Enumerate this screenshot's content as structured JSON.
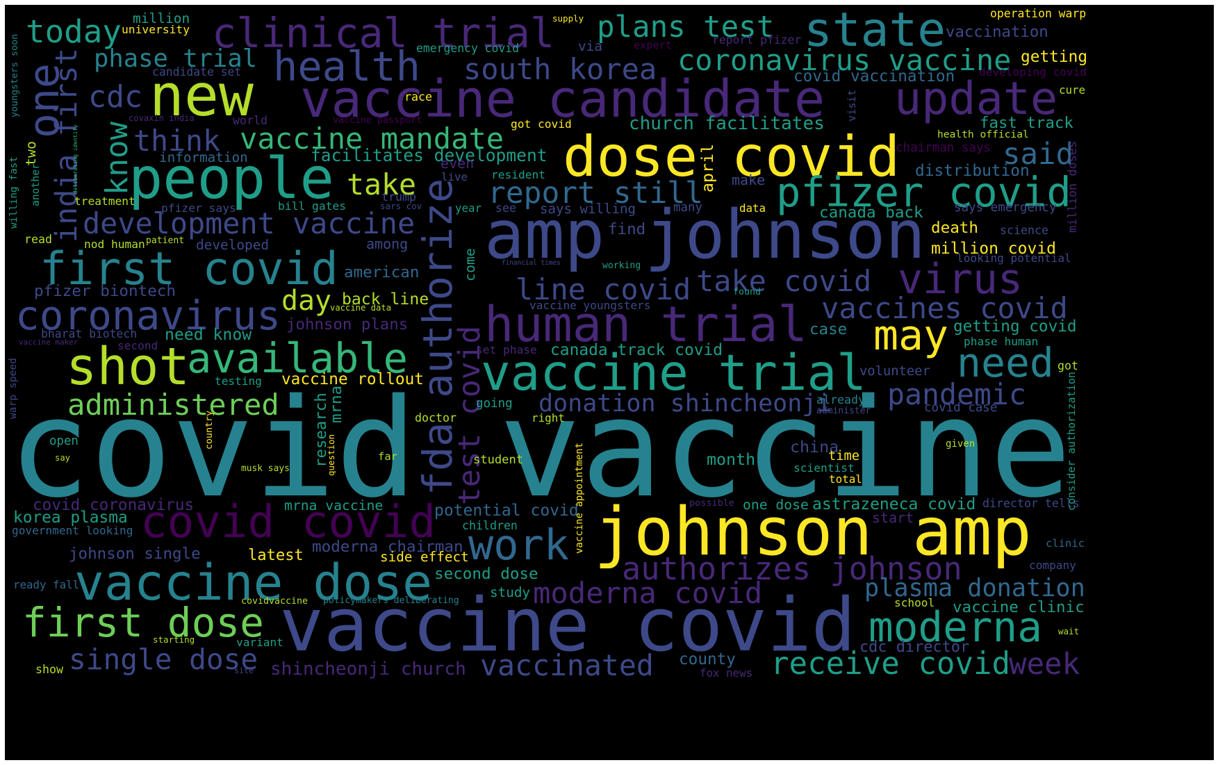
{
  "palette": {
    "c1": "#482878",
    "c2": "#3e4989",
    "c3": "#31688e",
    "c4": "#26828e",
    "c5": "#1f9e89",
    "c6": "#35b779",
    "c7": "#6ece58",
    "c8": "#b5de2b",
    "c9": "#fde725",
    "c0": "#440154"
  },
  "words": [
    {
      "id": "covid-vaccine",
      "text": "covid vaccine"
    },
    {
      "id": "vaccine-covid",
      "text": "vaccine covid"
    },
    {
      "id": "vaccine-candidate",
      "text": "vaccine candidate"
    },
    {
      "id": "amp-johnson",
      "text": "amp johnson"
    },
    {
      "id": "johnson-amp",
      "text": "johnson amp"
    },
    {
      "id": "dose-covid",
      "text": "dose covid"
    },
    {
      "id": "vaccine-trial",
      "text": "vaccine trial"
    },
    {
      "id": "human-trial",
      "text": "human trial"
    },
    {
      "id": "vaccine-dose",
      "text": "vaccine dose"
    },
    {
      "id": "people",
      "text": "people"
    },
    {
      "id": "clinical-trial",
      "text": "clinical trial"
    },
    {
      "id": "update",
      "text": "update"
    },
    {
      "id": "state",
      "text": "state"
    },
    {
      "id": "new",
      "text": "new"
    },
    {
      "id": "health",
      "text": "health"
    },
    {
      "id": "first-covid",
      "text": "first covid"
    },
    {
      "id": "shot",
      "text": "shot"
    },
    {
      "id": "available",
      "text": "available"
    },
    {
      "id": "coronavirus",
      "text": "coronavirus"
    },
    {
      "id": "pfizer-covid",
      "text": "pfizer covid"
    },
    {
      "id": "covid-covid",
      "text": "covid covid"
    },
    {
      "id": "first-dose",
      "text": "first dose"
    },
    {
      "id": "fda-authorize",
      "text": "fda authorize"
    },
    {
      "id": "coronavirus-vaccine",
      "text": "coronavirus vaccine"
    },
    {
      "id": "moderna",
      "text": "moderna"
    },
    {
      "id": "may",
      "text": "may"
    },
    {
      "id": "work",
      "text": "work"
    },
    {
      "id": "today",
      "text": "today"
    },
    {
      "id": "one",
      "text": "one"
    },
    {
      "id": "authorizes-johnson",
      "text": "authorizes johnson"
    },
    {
      "id": "virus",
      "text": "virus"
    },
    {
      "id": "need",
      "text": "need"
    },
    {
      "id": "plans-test",
      "text": "plans test"
    },
    {
      "id": "south-korea",
      "text": "south korea"
    },
    {
      "id": "vaccine-mandate",
      "text": "vaccine mandate"
    },
    {
      "id": "india-first",
      "text": "india first"
    },
    {
      "id": "development-vaccine",
      "text": "development vaccine"
    },
    {
      "id": "report-still",
      "text": "report still"
    },
    {
      "id": "think",
      "text": "think"
    },
    {
      "id": "know",
      "text": "know"
    },
    {
      "id": "take",
      "text": "take"
    },
    {
      "id": "phase-trial",
      "text": "phase trial"
    },
    {
      "id": "cdc",
      "text": "cdc"
    },
    {
      "id": "line-covid",
      "text": "line covid"
    },
    {
      "id": "take-covid",
      "text": "take covid"
    },
    {
      "id": "vaccines-covid",
      "text": "vaccines covid"
    },
    {
      "id": "test-covid",
      "text": "test covid"
    },
    {
      "id": "pandemic",
      "text": "pandemic"
    },
    {
      "id": "administered",
      "text": "administered"
    },
    {
      "id": "day",
      "text": "day"
    },
    {
      "id": "said",
      "text": "said"
    },
    {
      "id": "moderna-covid",
      "text": "moderna covid"
    },
    {
      "id": "plasma-donation",
      "text": "plasma donation"
    },
    {
      "id": "receive-covid",
      "text": "receive covid"
    },
    {
      "id": "vaccinated",
      "text": "vaccinated"
    },
    {
      "id": "single-dose",
      "text": "single dose"
    },
    {
      "id": "week",
      "text": "week"
    },
    {
      "id": "donation-shincheonji",
      "text": "donation shincheonji"
    },
    {
      "id": "church-facilitates",
      "text": "church facilitates"
    },
    {
      "id": "shincheonji-church",
      "text": "shincheonji church"
    },
    {
      "id": "fast-track",
      "text": "fast track"
    },
    {
      "id": "getting",
      "text": "getting"
    },
    {
      "id": "vaccination",
      "text": "vaccination"
    },
    {
      "id": "covid-vaccination",
      "text": "covid vaccination"
    },
    {
      "id": "distribution",
      "text": "distribution"
    },
    {
      "id": "facilitates-development",
      "text": "facilitates development"
    },
    {
      "id": "death",
      "text": "death"
    },
    {
      "id": "million-covid",
      "text": "million covid"
    },
    {
      "id": "getting-covid",
      "text": "getting covid"
    },
    {
      "id": "potential-covid",
      "text": "potential covid"
    },
    {
      "id": "astrazeneca-covid",
      "text": "astrazeneca covid"
    },
    {
      "id": "second-dose",
      "text": "second dose"
    },
    {
      "id": "moderna-chairman",
      "text": "moderna chairman"
    },
    {
      "id": "vaccine-clinic",
      "text": "vaccine clinic"
    },
    {
      "id": "canada-back",
      "text": "canada back"
    },
    {
      "id": "canada-track-covid",
      "text": "canada track covid"
    },
    {
      "id": "back-line",
      "text": "back line"
    },
    {
      "id": "covid-coronavirus",
      "text": "covid coronavirus"
    },
    {
      "id": "korea-plasma",
      "text": "korea plasma"
    },
    {
      "id": "johnson-single",
      "text": "johnson single"
    },
    {
      "id": "johnson-plans",
      "text": "johnson plans"
    },
    {
      "id": "pfizer-biontech",
      "text": "pfizer biontech"
    },
    {
      "id": "vaccine-rollout",
      "text": "vaccine rollout"
    },
    {
      "id": "mrna-vaccine",
      "text": "mrna vaccine"
    },
    {
      "id": "latest",
      "text": "latest"
    },
    {
      "id": "side-effect",
      "text": "side effect"
    },
    {
      "id": "month",
      "text": "month"
    },
    {
      "id": "china",
      "text": "china"
    },
    {
      "id": "county",
      "text": "county"
    },
    {
      "id": "fox-news",
      "text": "fox news"
    },
    {
      "id": "cdc-director",
      "text": "cdc director"
    },
    {
      "id": "director-tells",
      "text": "director tells"
    },
    {
      "id": "one-dose",
      "text": "one dose"
    },
    {
      "id": "need-know",
      "text": "need know"
    },
    {
      "id": "american",
      "text": "american"
    },
    {
      "id": "among",
      "text": "among"
    },
    {
      "id": "developed",
      "text": "developed"
    },
    {
      "id": "bharat-biotech",
      "text": "bharat biotech"
    },
    {
      "id": "information",
      "text": "information"
    },
    {
      "id": "treatment",
      "text": "treatment"
    },
    {
      "id": "bill-gates",
      "text": "bill gates"
    },
    {
      "id": "pfizer-says",
      "text": "pfizer says"
    },
    {
      "id": "says-willing",
      "text": "says willing"
    },
    {
      "id": "find",
      "text": "find"
    },
    {
      "id": "year",
      "text": "year"
    },
    {
      "id": "see",
      "text": "see"
    },
    {
      "id": "many",
      "text": "many"
    },
    {
      "id": "data",
      "text": "data"
    },
    {
      "id": "make",
      "text": "make"
    },
    {
      "id": "april",
      "text": "april"
    },
    {
      "id": "says-emergency",
      "text": "says emergency"
    },
    {
      "id": "looking-potential",
      "text": "looking potential"
    },
    {
      "id": "science",
      "text": "science"
    },
    {
      "id": "phase-human",
      "text": "phase human"
    },
    {
      "id": "case",
      "text": "case"
    },
    {
      "id": "volunteer",
      "text": "volunteer"
    },
    {
      "id": "got",
      "text": "got"
    },
    {
      "id": "covid-case",
      "text": "covid case"
    },
    {
      "id": "already",
      "text": "already"
    },
    {
      "id": "administer",
      "text": "administer"
    },
    {
      "id": "time",
      "text": "time"
    },
    {
      "id": "scientist",
      "text": "scientist"
    },
    {
      "id": "total",
      "text": "total"
    },
    {
      "id": "given",
      "text": "given"
    },
    {
      "id": "clinic",
      "text": "clinic"
    },
    {
      "id": "company",
      "text": "company"
    },
    {
      "id": "wait",
      "text": "wait"
    },
    {
      "id": "school",
      "text": "school"
    },
    {
      "id": "study",
      "text": "study"
    },
    {
      "id": "start",
      "text": "start"
    },
    {
      "id": "children",
      "text": "children"
    },
    {
      "id": "student",
      "text": "student"
    },
    {
      "id": "doctor",
      "text": "doctor"
    },
    {
      "id": "right",
      "text": "right"
    },
    {
      "id": "going",
      "text": "going"
    },
    {
      "id": "far",
      "text": "far"
    },
    {
      "id": "testing",
      "text": "testing"
    },
    {
      "id": "open",
      "text": "open"
    },
    {
      "id": "say",
      "text": "say"
    },
    {
      "id": "musk-says",
      "text": "musk says"
    },
    {
      "id": "government-looking",
      "text": "government looking"
    },
    {
      "id": "ready-fall",
      "text": "ready fall"
    },
    {
      "id": "covidvaccine",
      "text": "covidvaccine"
    },
    {
      "id": "policymakers-deliberating",
      "text": "policymakers deliberating"
    },
    {
      "id": "starting",
      "text": "starting"
    },
    {
      "id": "variant",
      "text": "variant"
    },
    {
      "id": "show",
      "text": "show"
    },
    {
      "id": "site",
      "text": "site"
    },
    {
      "id": "possible",
      "text": "possible"
    },
    {
      "id": "million",
      "text": "million"
    },
    {
      "id": "university",
      "text": "university"
    },
    {
      "id": "supply",
      "text": "supply"
    },
    {
      "id": "emergency-covid",
      "text": "emergency covid"
    },
    {
      "id": "via",
      "text": "via"
    },
    {
      "id": "expert",
      "text": "expert"
    },
    {
      "id": "report-pfizer",
      "text": "report pfizer"
    },
    {
      "id": "operation-warp",
      "text": "operation warp"
    },
    {
      "id": "developing-covid",
      "text": "developing covid"
    },
    {
      "id": "cure",
      "text": "cure"
    },
    {
      "id": "candidate-set",
      "text": "candidate set"
    },
    {
      "id": "race",
      "text": "race"
    },
    {
      "id": "covaxin-india",
      "text": "covaxin india"
    },
    {
      "id": "world",
      "text": "world"
    },
    {
      "id": "vaccine-passport",
      "text": "vaccine passport"
    },
    {
      "id": "got-covid",
      "text": "got covid"
    },
    {
      "id": "health-official",
      "text": "health official"
    },
    {
      "id": "chairman-says",
      "text": "chairman says"
    },
    {
      "id": "even",
      "text": "even"
    },
    {
      "id": "live",
      "text": "live"
    },
    {
      "id": "resident",
      "text": "resident"
    },
    {
      "id": "trump",
      "text": "trump"
    },
    {
      "id": "sars-cov",
      "text": "sars cov"
    },
    {
      "id": "patient",
      "text": "patient"
    },
    {
      "id": "nod-human",
      "text": "nod human"
    },
    {
      "id": "read",
      "text": "read"
    },
    {
      "id": "financial-times",
      "text": "financial times"
    },
    {
      "id": "working",
      "text": "working"
    },
    {
      "id": "found",
      "text": "found"
    },
    {
      "id": "vaccine-youngsters",
      "text": "vaccine youngsters"
    },
    {
      "id": "vaccine-data",
      "text": "vaccine data"
    },
    {
      "id": "vaccine-maker",
      "text": "vaccine maker"
    },
    {
      "id": "second",
      "text": "second"
    },
    {
      "id": "set-phase",
      "text": "set phase"
    },
    {
      "id": "come",
      "text": "come"
    },
    {
      "id": "research",
      "text": "research"
    },
    {
      "id": "question",
      "text": "question"
    },
    {
      "id": "mrna",
      "text": "mrna"
    },
    {
      "id": "vaccine-appointment",
      "text": "vaccine appointment"
    },
    {
      "id": "country",
      "text": "country"
    },
    {
      "id": "two",
      "text": "two"
    },
    {
      "id": "another",
      "text": "another"
    },
    {
      "id": "deliberating-identify",
      "text": "deliberating identify"
    },
    {
      "id": "willing-fast",
      "text": "willing fast"
    },
    {
      "id": "youngsters-soon",
      "text": "youngsters soon"
    },
    {
      "id": "warp-speed",
      "text": "warp speed"
    },
    {
      "id": "visit",
      "text": "visit"
    },
    {
      "id": "million-doses",
      "text": "million doses"
    },
    {
      "id": "consider-authorization",
      "text": "consider authorization"
    }
  ]
}
